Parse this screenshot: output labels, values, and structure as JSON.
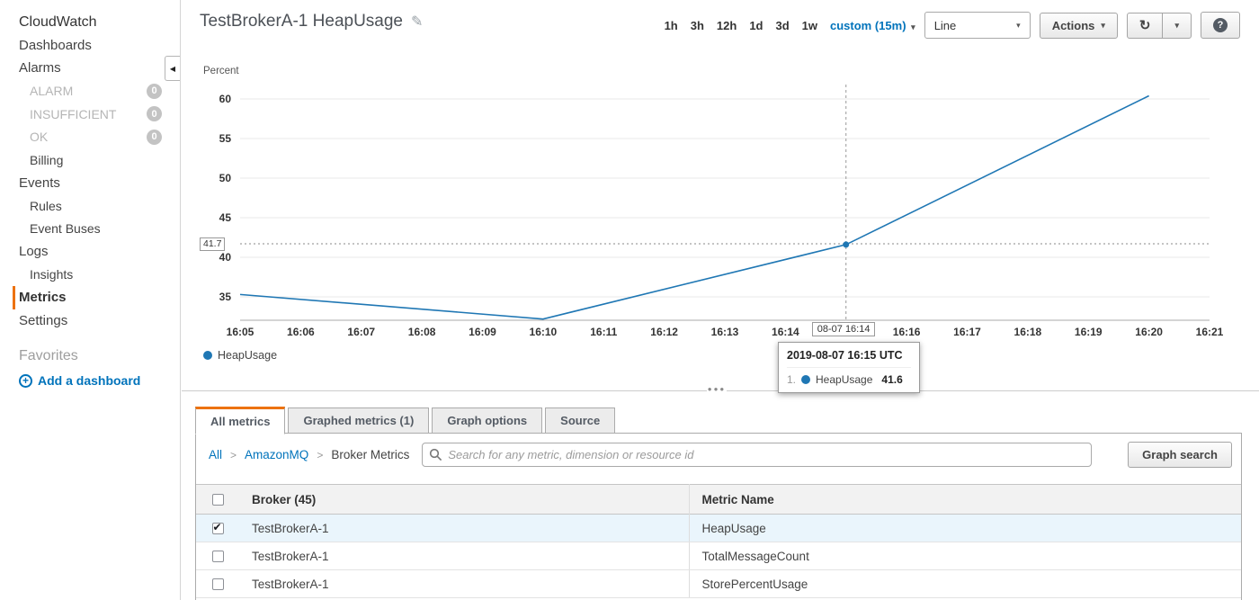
{
  "sidebar": {
    "items": [
      {
        "label": "CloudWatch",
        "cls": "title"
      },
      {
        "label": "Dashboards",
        "cls": "top"
      },
      {
        "label": "Alarms",
        "cls": "top"
      },
      {
        "label": "ALARM",
        "cls": "sub gray",
        "badge": "0"
      },
      {
        "label": "INSUFFICIENT",
        "cls": "sub gray",
        "badge": "0"
      },
      {
        "label": "OK",
        "cls": "sub gray",
        "badge": "0"
      },
      {
        "label": "Billing",
        "cls": "sub"
      },
      {
        "label": "Events",
        "cls": "top"
      },
      {
        "label": "Rules",
        "cls": "sub"
      },
      {
        "label": "Event Buses",
        "cls": "sub"
      },
      {
        "label": "Logs",
        "cls": "top"
      },
      {
        "label": "Insights",
        "cls": "sub"
      },
      {
        "label": "Metrics",
        "cls": "top active"
      },
      {
        "label": "Settings",
        "cls": "top"
      }
    ],
    "favorites_label": "Favorites",
    "add_dashboard_label": "Add a dashboard"
  },
  "header": {
    "title": "TestBrokerA-1 HeapUsage",
    "time_ranges": [
      "1h",
      "3h",
      "12h",
      "1d",
      "3d",
      "1w"
    ],
    "custom_range_label": "custom (15m)",
    "chart_type_value": "Line",
    "actions_label": "Actions"
  },
  "chart_data": {
    "type": "line",
    "title": "TestBrokerA-1 HeapUsage",
    "ylabel": "Percent",
    "x_ticks": [
      "16:05",
      "16:06",
      "16:07",
      "16:08",
      "16:09",
      "16:10",
      "16:11",
      "16:12",
      "16:13",
      "16:14",
      "16:15",
      "16:16",
      "16:17",
      "16:18",
      "16:19",
      "16:20",
      "16:21"
    ],
    "y_ticks": [
      60,
      55,
      50,
      45,
      40,
      35
    ],
    "ylim": [
      32,
      61.6
    ],
    "series": [
      {
        "name": "HeapUsage",
        "color": "#1f77b4",
        "points": [
          {
            "x": "16:05",
            "y": 35.3
          },
          {
            "x": "16:10",
            "y": 32.2
          },
          {
            "x": "16:15",
            "y": 41.6
          },
          {
            "x": "16:20",
            "y": 60.4
          }
        ]
      }
    ],
    "reference_line": {
      "label": "41.7",
      "value": 41.7
    },
    "crosshair": {
      "at_tick": "16:15",
      "axis_label": "08-07 16:14",
      "point_value": 41.6
    },
    "tooltip": {
      "title": "2019-08-07 16:15 UTC",
      "rows": [
        {
          "rank": "1.",
          "name": "HeapUsage",
          "value": "41.6"
        }
      ]
    },
    "legend": [
      {
        "name": "HeapUsage",
        "color": "#1f77b4"
      }
    ]
  },
  "tabs": [
    {
      "label": "All metrics",
      "active": true
    },
    {
      "label": "Graphed metrics (1)",
      "active": false
    },
    {
      "label": "Graph options",
      "active": false
    },
    {
      "label": "Source",
      "active": false
    }
  ],
  "metrics_panel": {
    "breadcrumb": [
      {
        "label": "All",
        "link": true
      },
      {
        "label": "AmazonMQ",
        "link": true
      },
      {
        "label": "Broker Metrics",
        "link": false
      }
    ],
    "search_placeholder": "Search for any metric, dimension or resource id",
    "graph_search_label": "Graph search",
    "table": {
      "columns": [
        "Broker  (45)",
        "Metric Name"
      ],
      "rows": [
        {
          "broker": "TestBrokerA-1",
          "metric": "HeapUsage",
          "checked": true,
          "selected": true
        },
        {
          "broker": "TestBrokerA-1",
          "metric": "TotalMessageCount",
          "checked": false,
          "selected": false
        },
        {
          "broker": "TestBrokerA-1",
          "metric": "StorePercentUsage",
          "checked": false,
          "selected": false
        }
      ]
    }
  },
  "colors": {
    "accent_orange": "#ec7211",
    "link_blue": "#0073bb",
    "series_blue": "#1f77b4"
  }
}
